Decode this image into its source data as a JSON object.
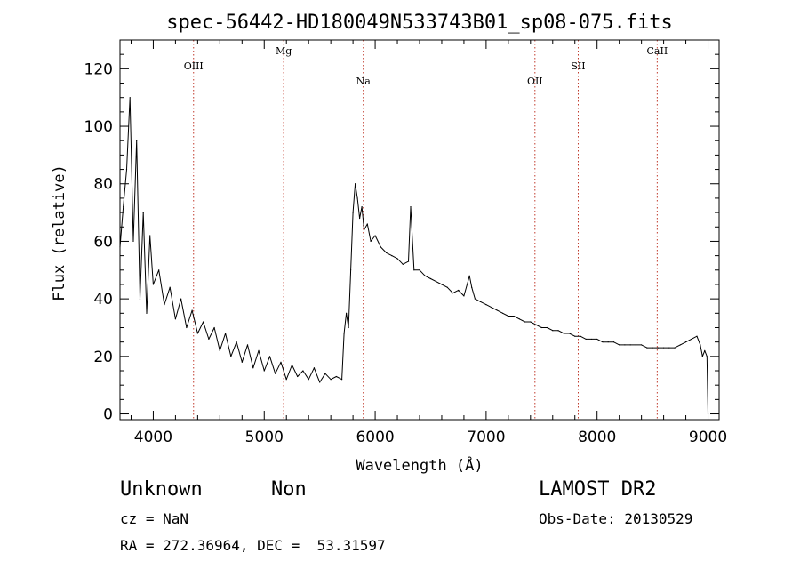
{
  "chart_data": {
    "type": "line",
    "title": "spec-56442-HD180049N533743B01_sp08-075.fits",
    "xlabel": "Wavelength (Å)",
    "ylabel": "Flux (relative)",
    "xlim": [
      3700,
      9100
    ],
    "ylim": [
      -2,
      130
    ],
    "x_ticks": [
      4000,
      5000,
      6000,
      7000,
      8000,
      9000
    ],
    "y_ticks": [
      0,
      20,
      40,
      60,
      80,
      100,
      120
    ],
    "x_tick_labels": [
      "4000",
      "5000",
      "6000",
      "7000",
      "8000",
      "9000"
    ],
    "y_tick_labels": [
      "0",
      "20",
      "40",
      "60",
      "80",
      "100",
      "120"
    ],
    "grid": false,
    "lines": [
      {
        "label": "OIII",
        "x": 4363,
        "label_row": "high"
      },
      {
        "label": "Mg",
        "x": 5175,
        "label_row": "top"
      },
      {
        "label": "Na",
        "x": 5893,
        "label_row": "low"
      },
      {
        "label": "OII",
        "x": 7440,
        "label_row": "low"
      },
      {
        "label": "SII",
        "x": 7830,
        "label_row": "high"
      },
      {
        "label": "CaII",
        "x": 8542,
        "label_row": "top"
      }
    ],
    "series": [
      {
        "x": [
          3700,
          3730,
          3760,
          3790,
          3820,
          3850,
          3880,
          3910,
          3940,
          3970,
          4000,
          4050,
          4100,
          4150,
          4200,
          4250,
          4300,
          4350,
          4400,
          4450,
          4500,
          4550,
          4600,
          4650,
          4700,
          4750,
          4800,
          4850,
          4900,
          4950,
          5000,
          5050,
          5100,
          5150,
          5200,
          5250,
          5300,
          5350,
          5400,
          5450,
          5500,
          5550,
          5600,
          5650,
          5700,
          5720,
          5740,
          5760,
          5780,
          5800,
          5820,
          5840,
          5860,
          5880,
          5900,
          5930,
          5960,
          6000,
          6050,
          6100,
          6150,
          6200,
          6250,
          6300,
          6320,
          6350,
          6400,
          6450,
          6500,
          6550,
          6600,
          6650,
          6700,
          6750,
          6800,
          6850,
          6870,
          6900,
          6950,
          7000,
          7050,
          7100,
          7150,
          7200,
          7250,
          7300,
          7350,
          7400,
          7450,
          7500,
          7550,
          7600,
          7650,
          7700,
          7750,
          7800,
          7850,
          7900,
          7950,
          8000,
          8050,
          8100,
          8150,
          8200,
          8250,
          8300,
          8350,
          8400,
          8450,
          8500,
          8550,
          8600,
          8650,
          8700,
          8750,
          8800,
          8850,
          8900,
          8930,
          8950,
          8970,
          8990,
          9000
        ],
        "y": [
          58,
          72,
          85,
          110,
          60,
          95,
          40,
          70,
          35,
          62,
          45,
          50,
          38,
          44,
          33,
          40,
          30,
          36,
          28,
          32,
          26,
          30,
          22,
          28,
          20,
          25,
          18,
          24,
          16,
          22,
          15,
          20,
          14,
          18,
          12,
          17,
          13,
          15,
          12,
          16,
          11,
          14,
          12,
          13,
          12,
          28,
          35,
          30,
          50,
          70,
          80,
          75,
          68,
          72,
          64,
          66,
          60,
          62,
          58,
          56,
          55,
          54,
          52,
          53,
          72,
          50,
          50,
          48,
          47,
          46,
          45,
          44,
          42,
          43,
          41,
          48,
          44,
          40,
          39,
          38,
          37,
          36,
          35,
          34,
          34,
          33,
          32,
          32,
          31,
          30,
          30,
          29,
          29,
          28,
          28,
          27,
          27,
          26,
          26,
          26,
          25,
          25,
          25,
          24,
          24,
          24,
          24,
          24,
          23,
          23,
          23,
          23,
          23,
          23,
          24,
          25,
          26,
          27,
          24,
          20,
          22,
          20,
          0
        ]
      }
    ]
  },
  "info": {
    "object_class": "Unknown",
    "object_subclass": "Non",
    "survey": "LAMOST DR2",
    "cz": "cz = NaN",
    "obs_date": "Obs-Date: 20130529",
    "radec": "RA = 272.36964, DEC =  53.31597"
  },
  "colors": {
    "spectrum": "#000000",
    "line_markers": "#c0392b",
    "axes": "#000000"
  }
}
